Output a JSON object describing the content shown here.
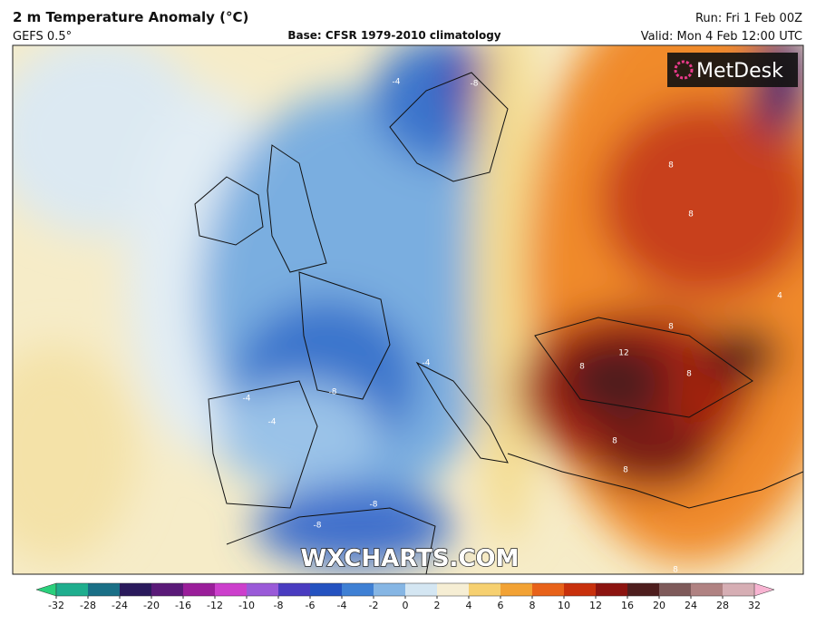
{
  "header": {
    "title": "2 m Temperature Anomaly (°C)",
    "model": "GEFS 0.5°",
    "base": "Base: CFSR 1979-2010 climatology",
    "run": "Run: Fri 1 Feb 00Z",
    "valid": "Valid: Mon 4 Feb 12:00 UTC"
  },
  "logo": "MetDesk",
  "watermark": "WXCHARTS.COM",
  "contour_labels": [
    "-4",
    "-8",
    "-4",
    "-8",
    "-8",
    "-4",
    "-8",
    "-4",
    "8",
    "8",
    "8",
    "12",
    "8",
    "8",
    "8",
    "8",
    "4",
    "8"
  ],
  "colorbar": {
    "ticks": [
      -32,
      -28,
      -24,
      -20,
      -16,
      -12,
      -10,
      -8,
      -6,
      -4,
      -2,
      0,
      2,
      4,
      6,
      8,
      10,
      12,
      16,
      20,
      24,
      28,
      32
    ],
    "colors": [
      "#1fae8e",
      "#1a6f86",
      "#2a1a5c",
      "#5a1a78",
      "#9a1e9a",
      "#cc3fcc",
      "#9a5ad8",
      "#4a3cc0",
      "#2452c0",
      "#3f80d4",
      "#86b6e4",
      "#d4e6f2",
      "#f6eed4",
      "#f6d070",
      "#f2a234",
      "#e8621a",
      "#c8300c",
      "#8c1410",
      "#4e1e1e",
      "#7e5a5a",
      "#b08282",
      "#d6aeb4"
    ],
    "under": "#2ad07c",
    "over": "#f8b4d2"
  }
}
